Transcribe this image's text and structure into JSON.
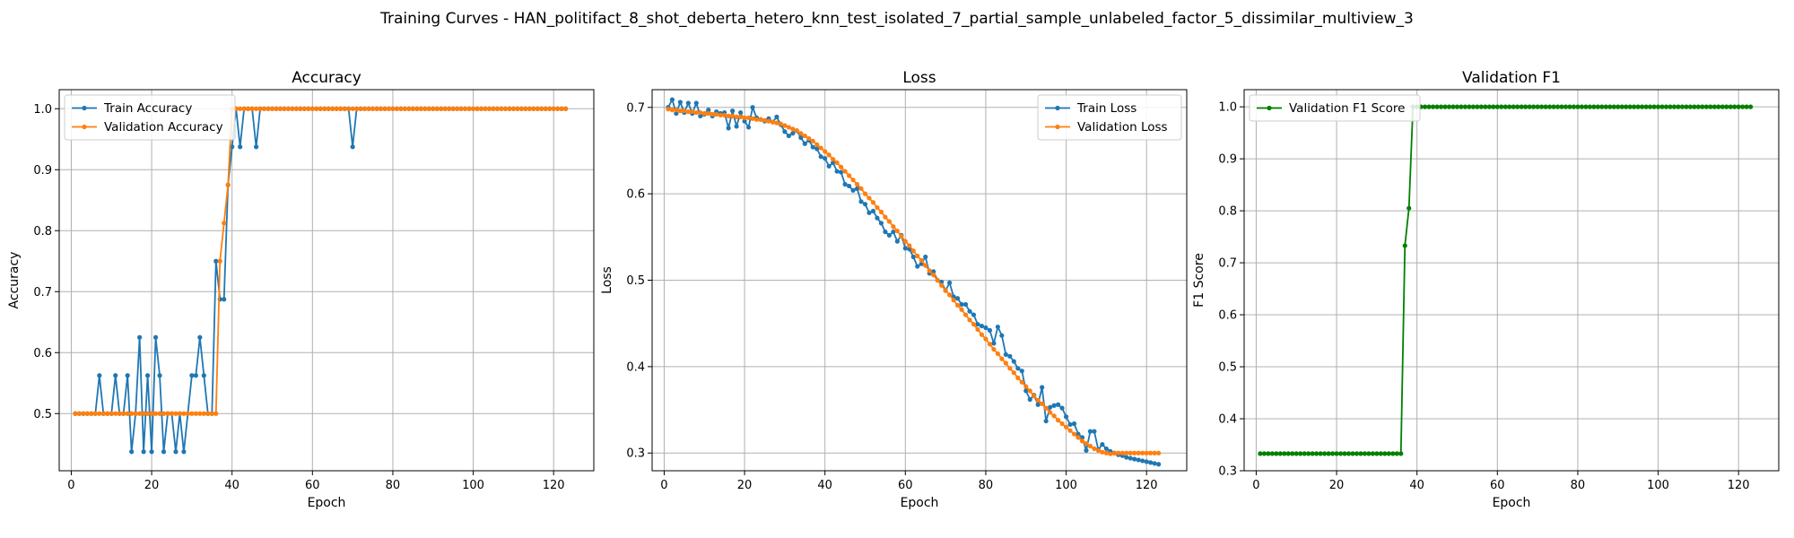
{
  "figure": {
    "suptitle": "Training Curves - HAN_politifact_8_shot_deberta_hetero_knn_test_isolated_7_partial_sample_unlabeled_factor_5_dissimilar_multiview_3"
  },
  "colors": {
    "blue": "#1f77b4",
    "orange": "#ff7f0e",
    "green": "#008000",
    "grid": "#b0b0b0"
  },
  "chart_data": [
    {
      "type": "line",
      "title": "Accuracy",
      "xlabel": "Epoch",
      "ylabel": "Accuracy",
      "xlim": [
        -3,
        130
      ],
      "ylim": [
        0.40625,
        1.03125
      ],
      "xticks": [
        0,
        20,
        40,
        60,
        80,
        100,
        120
      ],
      "yticks": [
        0.5,
        0.6,
        0.7,
        0.8,
        0.9,
        1.0
      ],
      "ytick_labels": [
        "0.5",
        "0.6",
        "0.7",
        "0.8",
        "0.9",
        "1.0"
      ],
      "grid": true,
      "legend": "top-left",
      "x": [
        1,
        2,
        3,
        4,
        5,
        6,
        7,
        8,
        9,
        10,
        11,
        12,
        13,
        14,
        15,
        16,
        17,
        18,
        19,
        20,
        21,
        22,
        23,
        24,
        25,
        26,
        27,
        28,
        29,
        30,
        31,
        32,
        33,
        34,
        35,
        36,
        37,
        38,
        39,
        40,
        41,
        42,
        43,
        44,
        45,
        46,
        47,
        48,
        49,
        50,
        51,
        52,
        53,
        54,
        55,
        56,
        57,
        58,
        59,
        60,
        61,
        62,
        63,
        64,
        65,
        66,
        67,
        68,
        69,
        70,
        71,
        72,
        73,
        74,
        75,
        76,
        77,
        78,
        79,
        80,
        81,
        82,
        83,
        84,
        85,
        86,
        87,
        88,
        89,
        90,
        91,
        92,
        93,
        94,
        95,
        96,
        97,
        98,
        99,
        100,
        101,
        102,
        103,
        104,
        105,
        106,
        107,
        108,
        109,
        110,
        111,
        112,
        113,
        114,
        115,
        116,
        117,
        118,
        119,
        120,
        121,
        122,
        123
      ],
      "series": [
        {
          "name": "Train Accuracy",
          "color": "#1f77b4",
          "values": [
            0.5,
            0.5,
            0.5,
            0.5,
            0.5,
            0.5,
            0.5625,
            0.5,
            0.5,
            0.5,
            0.5625,
            0.5,
            0.5,
            0.5625,
            0.4375,
            0.5,
            0.625,
            0.4375,
            0.5625,
            0.4375,
            0.625,
            0.5625,
            0.4375,
            0.5,
            0.5,
            0.4375,
            0.5,
            0.4375,
            0.5,
            0.5625,
            0.5625,
            0.625,
            0.5625,
            0.5,
            0.5,
            0.75,
            0.6875,
            0.6875,
            0.875,
            0.9375,
            1.0,
            0.9375,
            1.0,
            1.0,
            1.0,
            0.9375,
            1.0,
            1.0,
            1.0,
            1.0,
            1.0,
            1.0,
            1.0,
            1.0,
            1.0,
            1.0,
            1.0,
            1.0,
            1.0,
            1.0,
            1.0,
            1.0,
            1.0,
            1.0,
            1.0,
            1.0,
            1.0,
            1.0,
            1.0,
            0.9375,
            1.0,
            1.0,
            1.0,
            1.0,
            1.0,
            1.0,
            1.0,
            1.0,
            1.0,
            1.0,
            1.0,
            1.0,
            1.0,
            1.0,
            1.0,
            1.0,
            1.0,
            1.0,
            1.0,
            1.0,
            1.0,
            1.0,
            1.0,
            1.0,
            1.0,
            1.0,
            1.0,
            1.0,
            1.0,
            1.0,
            1.0,
            1.0,
            1.0,
            1.0,
            1.0,
            1.0,
            1.0,
            1.0,
            1.0,
            1.0,
            1.0,
            1.0,
            1.0,
            1.0,
            1.0,
            1.0,
            1.0,
            1.0,
            1.0,
            1.0,
            1.0,
            1.0,
            1.0
          ]
        },
        {
          "name": "Validation Accuracy",
          "color": "#ff7f0e",
          "values": [
            0.5,
            0.5,
            0.5,
            0.5,
            0.5,
            0.5,
            0.5,
            0.5,
            0.5,
            0.5,
            0.5,
            0.5,
            0.5,
            0.5,
            0.5,
            0.5,
            0.5,
            0.5,
            0.5,
            0.5,
            0.5,
            0.5,
            0.5,
            0.5,
            0.5,
            0.5,
            0.5,
            0.5,
            0.5,
            0.5,
            0.5,
            0.5,
            0.5,
            0.5,
            0.5,
            0.5,
            0.75,
            0.8125,
            0.875,
            1.0,
            1.0,
            1.0,
            1.0,
            1.0,
            1.0,
            1.0,
            1.0,
            1.0,
            1.0,
            1.0,
            1.0,
            1.0,
            1.0,
            1.0,
            1.0,
            1.0,
            1.0,
            1.0,
            1.0,
            1.0,
            1.0,
            1.0,
            1.0,
            1.0,
            1.0,
            1.0,
            1.0,
            1.0,
            1.0,
            1.0,
            1.0,
            1.0,
            1.0,
            1.0,
            1.0,
            1.0,
            1.0,
            1.0,
            1.0,
            1.0,
            1.0,
            1.0,
            1.0,
            1.0,
            1.0,
            1.0,
            1.0,
            1.0,
            1.0,
            1.0,
            1.0,
            1.0,
            1.0,
            1.0,
            1.0,
            1.0,
            1.0,
            1.0,
            1.0,
            1.0,
            1.0,
            1.0,
            1.0,
            1.0,
            1.0,
            1.0,
            1.0,
            1.0,
            1.0,
            1.0,
            1.0,
            1.0,
            1.0,
            1.0,
            1.0,
            1.0,
            1.0,
            1.0,
            1.0,
            1.0,
            1.0,
            1.0,
            1.0
          ]
        }
      ]
    },
    {
      "type": "line",
      "title": "Loss",
      "xlabel": "Epoch",
      "ylabel": "Loss",
      "xlim": [
        -3,
        130
      ],
      "ylim": [
        0.2795,
        0.7205
      ],
      "xticks": [
        0,
        20,
        40,
        60,
        80,
        100,
        120
      ],
      "yticks": [
        0.3,
        0.4,
        0.5,
        0.6,
        0.7
      ],
      "ytick_labels": [
        "0.3",
        "0.4",
        "0.5",
        "0.6",
        "0.7"
      ],
      "grid": true,
      "legend": "top-right",
      "x": [
        1,
        2,
        3,
        4,
        5,
        6,
        7,
        8,
        9,
        10,
        11,
        12,
        13,
        14,
        15,
        16,
        17,
        18,
        19,
        20,
        21,
        22,
        23,
        24,
        25,
        26,
        27,
        28,
        29,
        30,
        31,
        32,
        33,
        34,
        35,
        36,
        37,
        38,
        39,
        40,
        41,
        42,
        43,
        44,
        45,
        46,
        47,
        48,
        49,
        50,
        51,
        52,
        53,
        54,
        55,
        56,
        57,
        58,
        59,
        60,
        61,
        62,
        63,
        64,
        65,
        66,
        67,
        68,
        69,
        70,
        71,
        72,
        73,
        74,
        75,
        76,
        77,
        78,
        79,
        80,
        81,
        82,
        83,
        84,
        85,
        86,
        87,
        88,
        89,
        90,
        91,
        92,
        93,
        94,
        95,
        96,
        97,
        98,
        99,
        100,
        101,
        102,
        103,
        104,
        105,
        106,
        107,
        108,
        109,
        110,
        111,
        112,
        113,
        114,
        115,
        116,
        117,
        118,
        119,
        120,
        121,
        122,
        123
      ],
      "series": [
        {
          "name": "Train Loss",
          "color": "#1f77b4",
          "values": [
            0.7,
            0.709,
            0.693,
            0.706,
            0.694,
            0.705,
            0.693,
            0.705,
            0.69,
            0.692,
            0.697,
            0.69,
            0.695,
            0.693,
            0.694,
            0.676,
            0.696,
            0.678,
            0.694,
            0.684,
            0.677,
            0.7,
            0.688,
            0.686,
            0.684,
            0.687,
            0.683,
            0.689,
            0.68,
            0.672,
            0.667,
            0.67,
            0.673,
            0.665,
            0.658,
            0.662,
            0.654,
            0.652,
            0.643,
            0.641,
            0.632,
            0.636,
            0.626,
            0.625,
            0.611,
            0.609,
            0.604,
            0.606,
            0.591,
            0.588,
            0.578,
            0.58,
            0.572,
            0.566,
            0.556,
            0.552,
            0.556,
            0.545,
            0.552,
            0.537,
            0.536,
            0.527,
            0.516,
            0.519,
            0.527,
            0.508,
            0.51,
            0.5,
            0.498,
            0.488,
            0.497,
            0.481,
            0.479,
            0.472,
            0.472,
            0.464,
            0.46,
            0.449,
            0.447,
            0.445,
            0.442,
            0.427,
            0.446,
            0.436,
            0.414,
            0.412,
            0.406,
            0.398,
            0.395,
            0.372,
            0.362,
            0.367,
            0.356,
            0.376,
            0.337,
            0.353,
            0.355,
            0.356,
            0.352,
            0.342,
            0.333,
            0.334,
            0.322,
            0.318,
            0.303,
            0.325,
            0.325,
            0.304,
            0.31,
            0.305,
            0.302,
            0.3,
            0.298,
            0.297,
            0.295,
            0.294,
            0.293,
            0.292,
            0.291,
            0.29,
            0.289,
            0.288,
            0.287
          ]
        },
        {
          "name": "Validation Loss",
          "color": "#ff7f0e",
          "values": [
            0.698,
            0.697,
            0.697,
            0.696,
            0.696,
            0.695,
            0.695,
            0.694,
            0.694,
            0.693,
            0.693,
            0.692,
            0.692,
            0.691,
            0.691,
            0.69,
            0.69,
            0.689,
            0.689,
            0.688,
            0.688,
            0.687,
            0.686,
            0.686,
            0.685,
            0.684,
            0.683,
            0.682,
            0.681,
            0.679,
            0.677,
            0.675,
            0.673,
            0.67,
            0.667,
            0.664,
            0.661,
            0.657,
            0.653,
            0.649,
            0.645,
            0.64,
            0.636,
            0.631,
            0.626,
            0.621,
            0.616,
            0.611,
            0.606,
            0.6,
            0.595,
            0.59,
            0.584,
            0.579,
            0.573,
            0.568,
            0.562,
            0.557,
            0.551,
            0.545,
            0.54,
            0.534,
            0.528,
            0.523,
            0.517,
            0.511,
            0.506,
            0.5,
            0.494,
            0.488,
            0.483,
            0.477,
            0.471,
            0.466,
            0.46,
            0.454,
            0.449,
            0.443,
            0.437,
            0.432,
            0.426,
            0.42,
            0.415,
            0.409,
            0.404,
            0.398,
            0.393,
            0.387,
            0.382,
            0.377,
            0.372,
            0.366,
            0.361,
            0.357,
            0.352,
            0.347,
            0.343,
            0.338,
            0.334,
            0.33,
            0.326,
            0.322,
            0.318,
            0.314,
            0.311,
            0.308,
            0.305,
            0.303,
            0.301,
            0.3,
            0.299,
            0.3,
            0.3,
            0.3,
            0.3,
            0.3,
            0.3,
            0.3,
            0.3,
            0.3,
            0.3,
            0.3,
            0.3
          ]
        }
      ]
    },
    {
      "type": "line",
      "title": "Validation F1",
      "xlabel": "Epoch",
      "ylabel": "F1 Score",
      "xlim": [
        -3,
        130
      ],
      "ylim": [
        0.3,
        1.033
      ],
      "xticks": [
        0,
        20,
        40,
        60,
        80,
        100,
        120
      ],
      "yticks": [
        0.3,
        0.4,
        0.5,
        0.6,
        0.7,
        0.8,
        0.9,
        1.0
      ],
      "ytick_labels": [
        "0.3",
        "0.4",
        "0.5",
        "0.6",
        "0.7",
        "0.8",
        "0.9",
        "1.0"
      ],
      "grid": true,
      "legend": "top-left",
      "x": [
        1,
        2,
        3,
        4,
        5,
        6,
        7,
        8,
        9,
        10,
        11,
        12,
        13,
        14,
        15,
        16,
        17,
        18,
        19,
        20,
        21,
        22,
        23,
        24,
        25,
        26,
        27,
        28,
        29,
        30,
        31,
        32,
        33,
        34,
        35,
        36,
        37,
        38,
        39,
        40,
        41,
        42,
        43,
        44,
        45,
        46,
        47,
        48,
        49,
        50,
        51,
        52,
        53,
        54,
        55,
        56,
        57,
        58,
        59,
        60,
        61,
        62,
        63,
        64,
        65,
        66,
        67,
        68,
        69,
        70,
        71,
        72,
        73,
        74,
        75,
        76,
        77,
        78,
        79,
        80,
        81,
        82,
        83,
        84,
        85,
        86,
        87,
        88,
        89,
        90,
        91,
        92,
        93,
        94,
        95,
        96,
        97,
        98,
        99,
        100,
        101,
        102,
        103,
        104,
        105,
        106,
        107,
        108,
        109,
        110,
        111,
        112,
        113,
        114,
        115,
        116,
        117,
        118,
        119,
        120,
        121,
        122,
        123
      ],
      "series": [
        {
          "name": "Validation F1 Score",
          "color": "#008000",
          "values": [
            0.333,
            0.333,
            0.333,
            0.333,
            0.333,
            0.333,
            0.333,
            0.333,
            0.333,
            0.333,
            0.333,
            0.333,
            0.333,
            0.333,
            0.333,
            0.333,
            0.333,
            0.333,
            0.333,
            0.333,
            0.333,
            0.333,
            0.333,
            0.333,
            0.333,
            0.333,
            0.333,
            0.333,
            0.333,
            0.333,
            0.333,
            0.333,
            0.333,
            0.333,
            0.333,
            0.333,
            0.733,
            0.805,
            1.0,
            1.0,
            1.0,
            1.0,
            1.0,
            1.0,
            1.0,
            1.0,
            1.0,
            1.0,
            1.0,
            1.0,
            1.0,
            1.0,
            1.0,
            1.0,
            1.0,
            1.0,
            1.0,
            1.0,
            1.0,
            1.0,
            1.0,
            1.0,
            1.0,
            1.0,
            1.0,
            1.0,
            1.0,
            1.0,
            1.0,
            1.0,
            1.0,
            1.0,
            1.0,
            1.0,
            1.0,
            1.0,
            1.0,
            1.0,
            1.0,
            1.0,
            1.0,
            1.0,
            1.0,
            1.0,
            1.0,
            1.0,
            1.0,
            1.0,
            1.0,
            1.0,
            1.0,
            1.0,
            1.0,
            1.0,
            1.0,
            1.0,
            1.0,
            1.0,
            1.0,
            1.0,
            1.0,
            1.0,
            1.0,
            1.0,
            1.0,
            1.0,
            1.0,
            1.0,
            1.0,
            1.0,
            1.0,
            1.0,
            1.0,
            1.0,
            1.0,
            1.0,
            1.0,
            1.0,
            1.0,
            1.0,
            1.0,
            1.0,
            1.0
          ]
        }
      ]
    }
  ]
}
